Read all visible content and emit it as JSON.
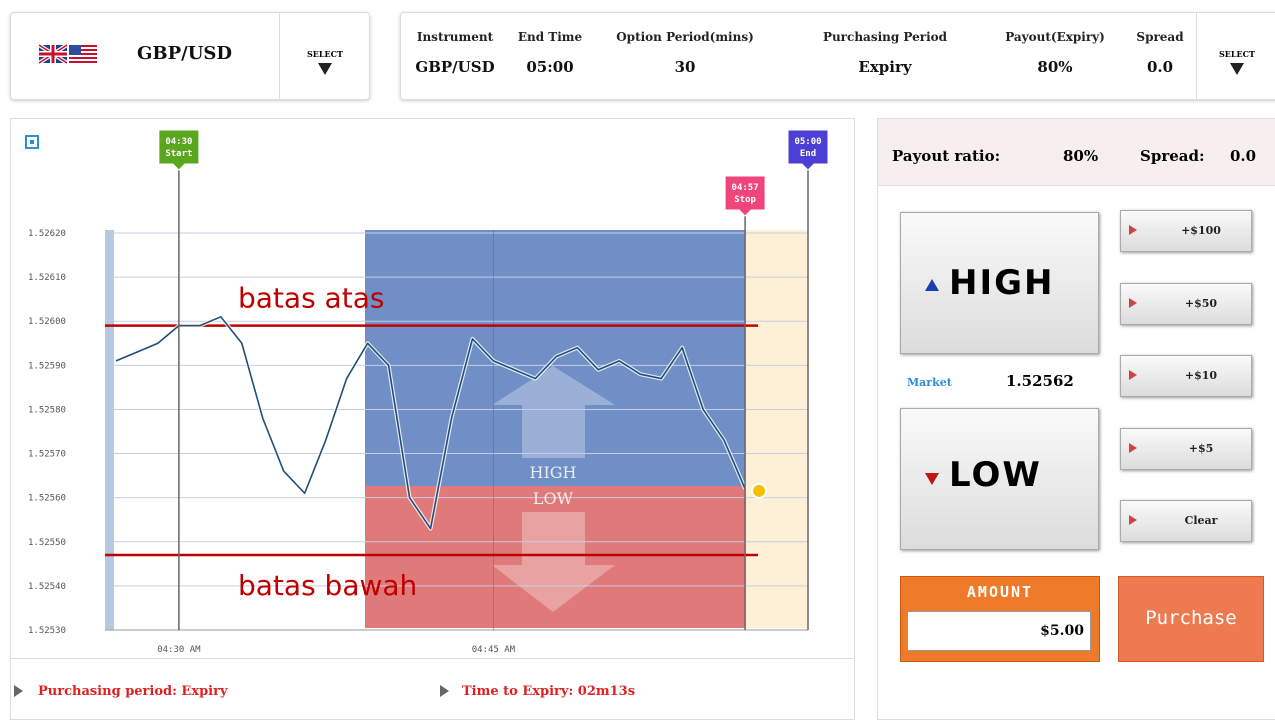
{
  "header": {
    "instrument": "GBP/USD",
    "select": "SELECT",
    "fields": [
      {
        "label": "Instrument",
        "value": "GBP/USD"
      },
      {
        "label": "End Time",
        "value": "05:00"
      },
      {
        "label": "Option Period(mins)",
        "value": "30"
      },
      {
        "label": "Purchasing Period",
        "value": "Expiry"
      },
      {
        "label": "Payout(Expiry)",
        "value": "80%"
      },
      {
        "label": "Spread",
        "value": "0.0"
      }
    ]
  },
  "chart_data": {
    "type": "line",
    "x": [
      "04:27",
      "04:28",
      "04:29",
      "04:30",
      "04:31",
      "04:32",
      "04:33",
      "04:34",
      "04:35",
      "04:36",
      "04:37",
      "04:38",
      "04:39",
      "04:40",
      "04:41",
      "04:42",
      "04:43",
      "04:44",
      "04:45",
      "04:46",
      "04:47",
      "04:48",
      "04:49",
      "04:50",
      "04:51",
      "04:52",
      "04:53",
      "04:54",
      "04:55",
      "04:56",
      "04:57"
    ],
    "series": [
      {
        "color": "#1f4e79",
        "values": [
          1.52591,
          1.52593,
          1.52595,
          1.52599,
          1.52599,
          1.52601,
          1.52595,
          1.52578,
          1.52566,
          1.52561,
          1.52573,
          1.52587,
          1.52595,
          1.5259,
          1.5256,
          1.52553,
          1.52578,
          1.52596,
          1.52591,
          1.52589,
          1.52587,
          1.52592,
          1.52594,
          1.52589,
          1.52591,
          1.52588,
          1.52587,
          1.52594,
          1.5258,
          1.52573,
          1.52562
        ]
      }
    ],
    "xlim": [
      "04:26",
      "05:00"
    ],
    "xticks": [
      {
        "value": "04:30",
        "label": "04:30 AM"
      },
      {
        "value": "04:45",
        "label": "04:45 AM"
      }
    ],
    "ylim": [
      1.5253,
      1.5262
    ],
    "yticks": [
      {
        "value": 1.5253,
        "label": "1.52530"
      },
      {
        "value": 1.5254,
        "label": "1.52540"
      },
      {
        "value": 1.5255,
        "label": "1.52550"
      },
      {
        "value": 1.5256,
        "label": "1.52560"
      },
      {
        "value": 1.5257,
        "label": "1.52570"
      },
      {
        "value": 1.5258,
        "label": "1.52580"
      },
      {
        "value": 1.5259,
        "label": "1.52590"
      },
      {
        "value": 1.526,
        "label": "1.52600"
      },
      {
        "value": 1.5261,
        "label": "1.52610"
      },
      {
        "value": 1.5262,
        "label": "1.52620"
      }
    ],
    "grid": true,
    "markers": [
      {
        "time": "04:30",
        "label": "Start",
        "color": "#5aa61e"
      },
      {
        "time": "04:57",
        "label": "Stop",
        "color": "#f0457a"
      },
      {
        "time": "05:00",
        "label": "End",
        "color": "#4b3fd6"
      }
    ],
    "annotations": [
      {
        "label": "batas atas",
        "value": 1.52599,
        "color": "#c00000"
      },
      {
        "label": "batas bawah",
        "value": 1.52547,
        "color": "#c00000"
      }
    ],
    "zone_labels": [
      "HIGH",
      "LOW"
    ]
  },
  "footer": {
    "purchasing_period": "Purchasing period: Expiry",
    "time_to_expiry": "Time to Expiry: 02m13s"
  },
  "panel": {
    "payout_label": "Payout ratio:",
    "payout": "80%",
    "spread_label": "Spread:",
    "spread": "0.0",
    "high": "HIGH",
    "low": "LOW",
    "market_label": "Market",
    "market": "1.52562",
    "amounts": [
      "+$100",
      "+$50",
      "+$10",
      "+$5",
      "Clear"
    ],
    "amount_label": "AMOUNT",
    "amount": "$5.00",
    "purchase": "Purchase"
  }
}
